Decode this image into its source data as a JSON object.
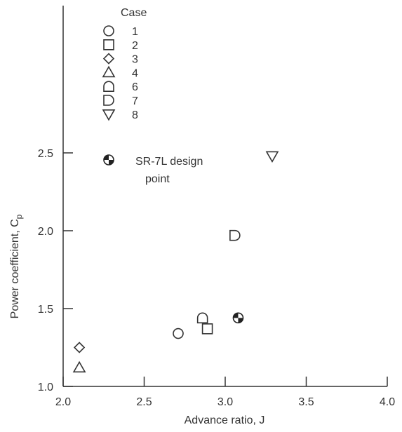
{
  "chart_data": {
    "type": "scatter",
    "xlabel": "Advance ratio, J",
    "ylabel_main": "Power coefficient, C",
    "ylabel_subscript": "p",
    "xlim": [
      2.0,
      4.0
    ],
    "ylim": [
      1.0,
      3.4
    ],
    "x_ticks": [
      {
        "value": 2.0,
        "label": "2.0"
      },
      {
        "value": 2.5,
        "label": "2.5"
      },
      {
        "value": 3.0,
        "label": "3.0"
      },
      {
        "value": 3.5,
        "label": "3.5"
      },
      {
        "value": 4.0,
        "label": "4.0"
      }
    ],
    "y_ticks": [
      {
        "value": 1.0,
        "label": "1.0"
      },
      {
        "value": 1.5,
        "label": "1.5"
      },
      {
        "value": 2.0,
        "label": "2.0"
      },
      {
        "value": 2.5,
        "label": "2.5"
      }
    ],
    "grid": false,
    "legend_title": "Case",
    "legend_position": "top-left",
    "series": [
      {
        "name": "1",
        "marker": "circle",
        "points": [
          {
            "x": 2.71,
            "y": 1.34
          }
        ]
      },
      {
        "name": "2",
        "marker": "square",
        "points": [
          {
            "x": 2.89,
            "y": 1.37
          }
        ]
      },
      {
        "name": "3",
        "marker": "diamond",
        "points": [
          {
            "x": 2.1,
            "y": 1.25
          }
        ]
      },
      {
        "name": "4",
        "marker": "triangle-up",
        "points": [
          {
            "x": 2.1,
            "y": 1.12
          }
        ]
      },
      {
        "name": "6",
        "marker": "arch-up",
        "points": [
          {
            "x": 2.86,
            "y": 1.44
          }
        ]
      },
      {
        "name": "7",
        "marker": "d-shape",
        "points": [
          {
            "x": 3.06,
            "y": 1.97
          }
        ]
      },
      {
        "name": "8",
        "marker": "triangle-down",
        "points": [
          {
            "x": 3.29,
            "y": 2.48
          }
        ]
      }
    ],
    "design_point": {
      "label_line1": "SR-7L design",
      "label_line2": "point",
      "marker": "design-point",
      "x": 3.08,
      "y": 1.44
    }
  }
}
